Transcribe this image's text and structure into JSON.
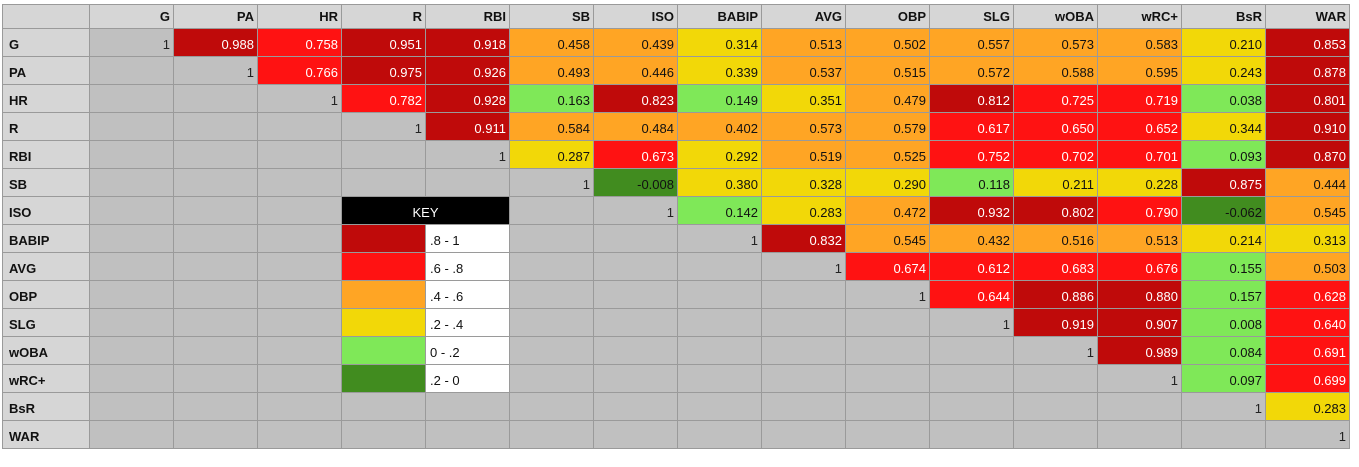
{
  "stats": [
    "G",
    "PA",
    "HR",
    "R",
    "RBI",
    "SB",
    "ISO",
    "BABIP",
    "AVG",
    "OBP",
    "SLG",
    "wOBA",
    "wRC+",
    "BsR",
    "WAR"
  ],
  "matrix": [
    [
      "1",
      "0.988",
      "0.758",
      "0.951",
      "0.918",
      "0.458",
      "0.439",
      "0.314",
      "0.513",
      "0.502",
      "0.557",
      "0.573",
      "0.583",
      "0.210",
      "0.853"
    ],
    [
      "",
      "1",
      "0.766",
      "0.975",
      "0.926",
      "0.493",
      "0.446",
      "0.339",
      "0.537",
      "0.515",
      "0.572",
      "0.588",
      "0.595",
      "0.243",
      "0.878"
    ],
    [
      "",
      "",
      "1",
      "0.782",
      "0.928",
      "0.163",
      "0.823",
      "0.149",
      "0.351",
      "0.479",
      "0.812",
      "0.725",
      "0.719",
      "0.038",
      "0.801"
    ],
    [
      "",
      "",
      "",
      "1",
      "0.911",
      "0.584",
      "0.484",
      "0.402",
      "0.573",
      "0.579",
      "0.617",
      "0.650",
      "0.652",
      "0.344",
      "0.910"
    ],
    [
      "",
      "",
      "",
      "",
      "1",
      "0.287",
      "0.673",
      "0.292",
      "0.519",
      "0.525",
      "0.752",
      "0.702",
      "0.701",
      "0.093",
      "0.870"
    ],
    [
      "",
      "",
      "",
      "",
      "",
      "1",
      "-0.008",
      "0.380",
      "0.328",
      "0.290",
      "0.118",
      "0.211",
      "0.228",
      "0.875",
      "0.444"
    ],
    [
      "",
      "",
      "",
      "",
      "",
      "",
      "1",
      "0.142",
      "0.283",
      "0.472",
      "0.932",
      "0.802",
      "0.790",
      "-0.062",
      "0.545"
    ],
    [
      "",
      "",
      "",
      "",
      "",
      "",
      "",
      "1",
      "0.832",
      "0.545",
      "0.432",
      "0.516",
      "0.513",
      "0.214",
      "0.313"
    ],
    [
      "",
      "",
      "",
      "",
      "",
      "",
      "",
      "",
      "1",
      "0.674",
      "0.612",
      "0.683",
      "0.676",
      "0.155",
      "0.503"
    ],
    [
      "",
      "",
      "",
      "",
      "",
      "",
      "",
      "",
      "",
      "1",
      "0.644",
      "0.886",
      "0.880",
      "0.157",
      "0.628"
    ],
    [
      "",
      "",
      "",
      "",
      "",
      "",
      "",
      "",
      "",
      "",
      "1",
      "0.919",
      "0.907",
      "0.008",
      "0.640"
    ],
    [
      "",
      "",
      "",
      "",
      "",
      "",
      "",
      "",
      "",
      "",
      "",
      "1",
      "0.989",
      "0.084",
      "0.691"
    ],
    [
      "",
      "",
      "",
      "",
      "",
      "",
      "",
      "",
      "",
      "",
      "",
      "",
      "1",
      "0.097",
      "0.699"
    ],
    [
      "",
      "",
      "",
      "",
      "",
      "",
      "",
      "",
      "",
      "",
      "",
      "",
      "",
      "1",
      "0.283"
    ],
    [
      "",
      "",
      "",
      "",
      "",
      "",
      "",
      "",
      "",
      "",
      "",
      "",
      "",
      "",
      "1"
    ]
  ],
  "colors": {
    "dark_red": "#bf0a0a",
    "red": "#ff1212",
    "orange": "#ffa524",
    "yellow": "#f2d808",
    "light_green": "#7fe858",
    "dark_green": "#418c1f"
  },
  "key": {
    "title": "KEY",
    "entries": [
      {
        "label": ".8 - 1",
        "color": "#bf0a0a"
      },
      {
        "label": ".6 - .8",
        "color": "#ff1212"
      },
      {
        "label": ".4 - .6",
        "color": "#ffa524"
      },
      {
        "label": ".2 - .4",
        "color": "#f2d808"
      },
      {
        "label": "0 - .2",
        "color": "#7fe858"
      },
      {
        "label": ".2 - 0",
        "color": "#418c1f"
      }
    ]
  }
}
